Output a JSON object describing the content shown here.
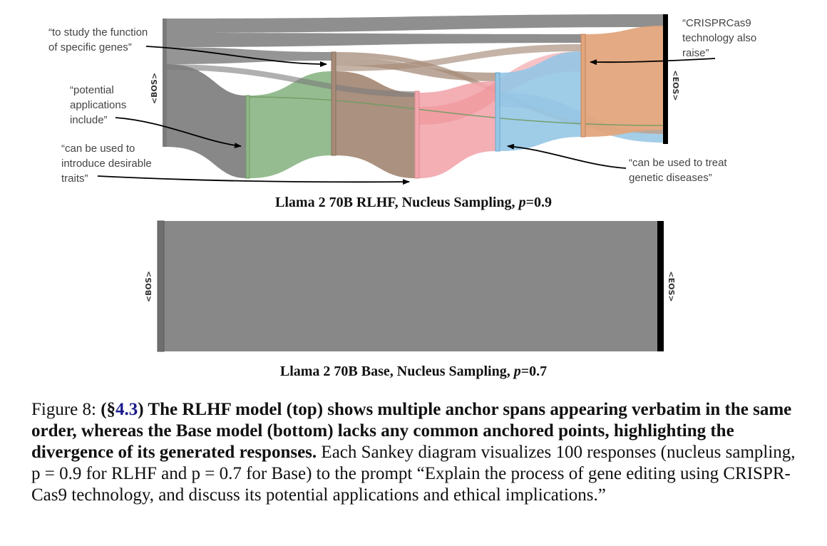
{
  "top_figure": {
    "title_prefix": "Llama 2 70B RLHF, Nucleus Sampling, ",
    "title_p": "p",
    "title_suffix": "=0.9",
    "bos_label": "<BOS>",
    "eos_label": "<EOS>",
    "annotations": {
      "function": [
        "“to study the function",
        "of specific genes”"
      ],
      "potential": [
        "“potential",
        "applications",
        "include”"
      ],
      "traits": [
        "“can be used to",
        "introduce desirable",
        "traits”"
      ],
      "crispr": [
        "“CRISPRCas9",
        "technology also",
        "raise”"
      ],
      "treat": [
        "“can be used to treat",
        "genetic diseases”"
      ]
    },
    "colors": {
      "gray": "#7b7b7b",
      "green": "#8fb88a",
      "brown": "#a68b78",
      "pink": "#f2a6ac",
      "blue": "#95c6e4",
      "orange": "#e1a57c",
      "eos_bar": "#000000"
    }
  },
  "bottom_figure": {
    "title_prefix": "Llama 2 70B Base, Nucleus Sampling, ",
    "title_p": "p",
    "title_suffix": "=0.7",
    "bos_label": "<BOS>",
    "eos_label": "<EOS>"
  },
  "caption": {
    "fig_label": "Figure 8:",
    "ref_open": "(§",
    "ref_num": "4.3",
    "ref_close": ")",
    "bold_text": " The RLHF model (top) shows multiple anchor spans appearing verbatim in the same order, whereas the Base model (bottom) lacks any common anchored points, highlighting the divergence of its generated responses.",
    "rest_text": " Each Sankey diagram visualizes 100 responses (nucleus sampling, p = 0.9 for RLHF and p = 0.7 for Base) to the prompt “Explain the process of gene editing using CRISPR-Cas9 technology, and discuss its potential applications and ethical implications.”"
  }
}
